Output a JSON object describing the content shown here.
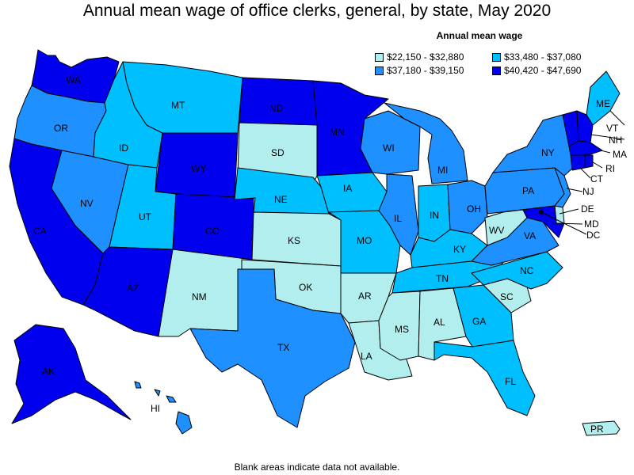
{
  "title": "Annual mean wage of office clerks, general, by state, May 2020",
  "legend": {
    "title": "Annual mean wage",
    "items": [
      {
        "range": "$22,150 - $32,880",
        "color": "#b2eeee"
      },
      {
        "range": "$33,480 - $37,080",
        "color": "#00bfff"
      },
      {
        "range": "$37,180 - $39,150",
        "color": "#1e90ff"
      },
      {
        "range": "$40,420 - $47,690",
        "color": "#0000ee"
      }
    ]
  },
  "footer": "Blank areas indicate data not available.",
  "states": {
    "WA": {
      "label": "WA",
      "tier": 3
    },
    "OR": {
      "label": "OR",
      "tier": 2
    },
    "CA": {
      "label": "CA",
      "tier": 3
    },
    "NV": {
      "label": "NV",
      "tier": 2
    },
    "ID": {
      "label": "ID",
      "tier": 1
    },
    "MT": {
      "label": "MT",
      "tier": 1
    },
    "WY": {
      "label": "WY",
      "tier": 3
    },
    "UT": {
      "label": "UT",
      "tier": 1
    },
    "AZ": {
      "label": "AZ",
      "tier": 3
    },
    "CO": {
      "label": "CO",
      "tier": 3
    },
    "NM": {
      "label": "NM",
      "tier": 0
    },
    "ND": {
      "label": "ND",
      "tier": 3
    },
    "SD": {
      "label": "SD",
      "tier": 0
    },
    "NE": {
      "label": "NE",
      "tier": 1
    },
    "KS": {
      "label": "KS",
      "tier": 0
    },
    "OK": {
      "label": "OK",
      "tier": 0
    },
    "TX": {
      "label": "TX",
      "tier": 2
    },
    "MN": {
      "label": "MN",
      "tier": 3
    },
    "IA": {
      "label": "IA",
      "tier": 1
    },
    "MO": {
      "label": "MO",
      "tier": 1
    },
    "AR": {
      "label": "AR",
      "tier": 0
    },
    "LA": {
      "label": "LA",
      "tier": 0
    },
    "WI": {
      "label": "WI",
      "tier": 2
    },
    "IL": {
      "label": "IL",
      "tier": 2
    },
    "MI": {
      "label": "MI",
      "tier": 2
    },
    "IN": {
      "label": "IN",
      "tier": 1
    },
    "OH": {
      "label": "OH",
      "tier": 2
    },
    "KY": {
      "label": "KY",
      "tier": 1
    },
    "TN": {
      "label": "TN",
      "tier": 1
    },
    "MS": {
      "label": "MS",
      "tier": 0
    },
    "AL": {
      "label": "AL",
      "tier": 0
    },
    "GA": {
      "label": "GA",
      "tier": 1
    },
    "FL": {
      "label": "FL",
      "tier": 1
    },
    "SC": {
      "label": "SC",
      "tier": 0
    },
    "NC": {
      "label": "NC",
      "tier": 1
    },
    "VA": {
      "label": "VA",
      "tier": 2
    },
    "WV": {
      "label": "WV",
      "tier": 0
    },
    "PA": {
      "label": "PA",
      "tier": 2
    },
    "NY": {
      "label": "NY",
      "tier": 2
    },
    "ME": {
      "label": "ME",
      "tier": 1
    },
    "VT": {
      "label": "VT",
      "tier": 3
    },
    "NH": {
      "label": "NH",
      "tier": 3
    },
    "MA": {
      "label": "MA",
      "tier": 3
    },
    "RI": {
      "label": "RI",
      "tier": 3
    },
    "CT": {
      "label": "CT",
      "tier": 3
    },
    "NJ": {
      "label": "NJ",
      "tier": 2
    },
    "DE": {
      "label": "DE",
      "tier": 0
    },
    "MD": {
      "label": "MD",
      "tier": 3
    },
    "DC": {
      "label": "DC",
      "tier": 3
    },
    "AK": {
      "label": "AK",
      "tier": 3
    },
    "HI": {
      "label": "HI",
      "tier": 2
    },
    "PR": {
      "label": "PR",
      "tier": 0
    }
  }
}
